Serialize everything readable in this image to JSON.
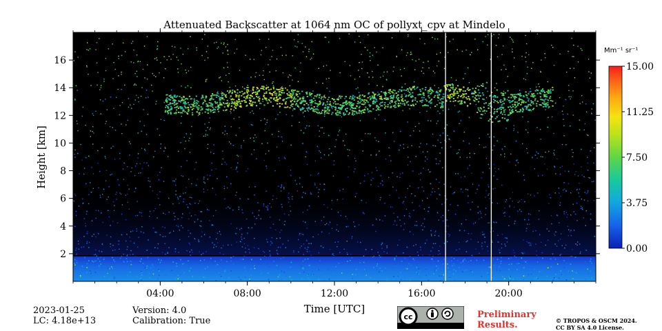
{
  "chart_data": {
    "type": "heatmap",
    "title": "Attenuated Backscatter at 1064 nm OC of pollyxt_cpv at Mindelo",
    "xlabel": "Time [UTC]",
    "ylabel": "Height [km]",
    "xlim_hours": [
      0,
      24
    ],
    "ylim_km": [
      0.0,
      18.0
    ],
    "x_ticks": [
      {
        "value": 4,
        "label": "04:00"
      },
      {
        "value": 8,
        "label": "08:00"
      },
      {
        "value": 12,
        "label": "12:00"
      },
      {
        "value": 16,
        "label": "16:00"
      },
      {
        "value": 20,
        "label": "20:00"
      }
    ],
    "y_ticks": [
      {
        "value": 2,
        "label": "2"
      },
      {
        "value": 4,
        "label": "4"
      },
      {
        "value": 6,
        "label": "6"
      },
      {
        "value": 8,
        "label": "8"
      },
      {
        "value": 10,
        "label": "10"
      },
      {
        "value": 12,
        "label": "12"
      },
      {
        "value": 14,
        "label": "14"
      },
      {
        "value": 16,
        "label": "16"
      }
    ],
    "colorbar": {
      "unit": "Mm⁻¹ sr⁻¹",
      "range": [
        0.0,
        15.0
      ],
      "ticks": [
        {
          "value": 0.0,
          "label": "0.00"
        },
        {
          "value": 3.75,
          "label": "3.75"
        },
        {
          "value": 7.5,
          "label": "7.50"
        },
        {
          "value": 11.25,
          "label": "11.25"
        },
        {
          "value": 15.0,
          "label": "15.00"
        }
      ]
    },
    "features": {
      "boundary_layer_top_km": 1.8,
      "cirrus_layer_km": [
        11.5,
        14.5
      ],
      "cirrus_time_hours": [
        4.2,
        22.0
      ],
      "data_gaps_hours": [
        17.1,
        19.2
      ]
    }
  },
  "footer": {
    "date": "2023-01-25",
    "lc": "LC: 4.18e+13",
    "version": "Version: 4.0",
    "calibration": "Calibration: True",
    "preliminary_line1": "Preliminary",
    "preliminary_line2": "Results.",
    "copyright_line1": "© TROPOS & OSCM 2024.",
    "copyright_line2": "CC BY SA 4.0 License.",
    "cc_icon_label": "cc",
    "cc_by_label": "BY",
    "cc_sa_label": "SA"
  },
  "colors": {
    "background": "#000000",
    "data_gap": "#ffffff",
    "preliminary": "#e8302a"
  }
}
